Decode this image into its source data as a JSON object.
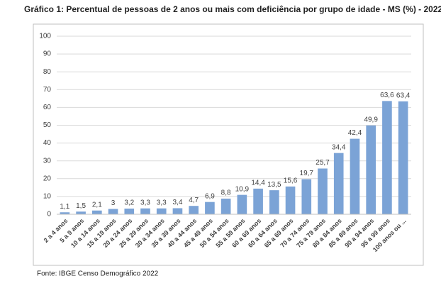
{
  "chart_data": {
    "type": "bar",
    "title": "Gráfico 1: Percentual de pessoas de 2 anos ou mais com deficiência por grupo de idade - MS (%) - 2022",
    "categories": [
      "2 a 4 anos",
      "5 a 9 anos",
      "10 a 14 anos",
      "15 a 19 anos",
      "20 a 24 anos",
      "25 a 29 anos",
      "30 a 34 anos",
      "35 a 39 anos",
      "40 a 44 anos",
      "45 a 49 anos",
      "50 a 54 anos",
      "55 a 59 anos",
      "60 a 69 anos",
      "60 a 64 anos",
      "65 a 69 anos",
      "70 a 74 anos",
      "75 a 79 anos",
      "80 a 84 anos",
      "85 a 89 anos",
      "90 a 94 anos",
      "95 a 99 anos",
      "100 anos ou ..."
    ],
    "values": [
      1.1,
      1.5,
      2.1,
      3,
      3.2,
      3.3,
      3.3,
      3.4,
      4.7,
      6.9,
      8.8,
      10.9,
      14.4,
      13.5,
      15.6,
      19.7,
      25.7,
      34.4,
      42.4,
      49.9,
      63.6,
      63.4
    ],
    "value_labels": [
      "1,1",
      "1,5",
      "2,1",
      "3",
      "3,2",
      "3,3",
      "3,3",
      "3,4",
      "4,7",
      "6,9",
      "8,8",
      "10,9",
      "14,4",
      "13,5",
      "15,6",
      "19,7",
      "25,7",
      "34,4",
      "42,4",
      "49,9",
      "63,6",
      "63,4"
    ],
    "color": "#7ba3d6",
    "ylim": [
      0,
      100
    ],
    "yticks": [
      0,
      10,
      20,
      30,
      40,
      50,
      60,
      70,
      80,
      90,
      100
    ],
    "grid": true,
    "source": "Fonte: IBGE Censo Demográfico 2022"
  }
}
